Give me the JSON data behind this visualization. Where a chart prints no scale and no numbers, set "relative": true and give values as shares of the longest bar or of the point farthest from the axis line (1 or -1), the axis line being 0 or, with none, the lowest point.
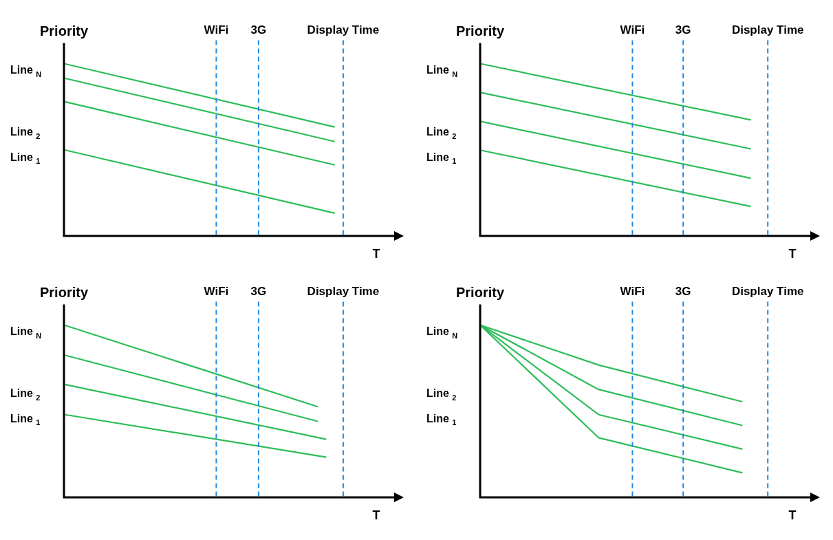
{
  "chart_data": [
    {
      "type": "line",
      "relative": true,
      "ylabel": "Priority",
      "xlabel": "T",
      "annotations": [
        "Line $_{N}$",
        "Line $_{2}$",
        "Line $_{1}$"
      ],
      "categories": [
        null,
        null,
        null,
        null,
        null,
        null,
        null,
        null,
        null,
        null,
        null,
        null,
        null,
        null,
        null,
        null,
        null,
        null,
        "WiFi",
        null,
        null,
        null,
        null,
        "3G",
        null,
        null,
        null,
        null,
        null,
        null,
        null,
        null,
        null,
        "Display Time",
        null,
        null,
        null,
        null,
        null,
        null,
        null
      ],
      "ref_lines": [
        {
          "axis": "x",
          "value": "WiFi",
          "color": "#1e88e5",
          "line_style": "dashed"
        },
        {
          "axis": "x",
          "value": "3G",
          "color": "#1e88e5",
          "line_style": "dashed"
        },
        {
          "axis": "x",
          "value": "Display Time",
          "color": "#1e88e5",
          "line_style": "dashed"
        }
      ],
      "series": [
        {
          "color": "#2ebd59",
          "values": [
            1,
            null,
            null,
            null,
            null,
            null,
            null,
            null,
            null,
            null,
            null,
            null,
            null,
            null,
            null,
            null,
            null,
            null,
            null,
            null,
            null,
            null,
            null,
            null,
            null,
            null,
            null,
            null,
            null,
            null,
            null,
            null,
            0.632,
            null,
            null,
            null,
            null,
            null,
            null,
            null,
            null
          ]
        },
        {
          "color": "#2ebd59",
          "values": [
            0.916,
            null,
            null,
            null,
            null,
            null,
            null,
            null,
            null,
            null,
            null,
            null,
            null,
            null,
            null,
            null,
            null,
            null,
            null,
            null,
            null,
            null,
            null,
            null,
            null,
            null,
            null,
            null,
            null,
            null,
            null,
            null,
            0.548,
            null,
            null,
            null,
            null,
            null,
            null,
            null,
            null
          ]
        },
        {
          "color": "#2ebd59",
          "values": [
            0.78,
            null,
            null,
            null,
            null,
            null,
            null,
            null,
            null,
            null,
            null,
            null,
            null,
            null,
            null,
            null,
            null,
            null,
            null,
            null,
            null,
            null,
            null,
            null,
            null,
            null,
            null,
            null,
            null,
            null,
            null,
            null,
            0.412,
            null,
            null,
            null,
            null,
            null,
            null,
            null,
            null
          ]
        },
        {
          "color": "#2ebd59",
          "values": [
            0.5,
            null,
            null,
            null,
            null,
            null,
            null,
            null,
            null,
            null,
            null,
            null,
            null,
            null,
            null,
            null,
            null,
            null,
            null,
            null,
            null,
            null,
            null,
            null,
            null,
            null,
            null,
            null,
            null,
            null,
            null,
            null,
            0.132,
            null,
            null,
            null,
            null,
            null,
            null,
            null,
            null
          ]
        }
      ]
    },
    {
      "type": "line",
      "relative": true,
      "ylabel": "Priority",
      "xlabel": "T",
      "annotations": [
        "Line $_{N}$",
        "Line $_{2}$",
        "Line $_{1}$"
      ],
      "categories": [
        null,
        null,
        null,
        null,
        null,
        null,
        null,
        null,
        null,
        null,
        null,
        null,
        null,
        null,
        null,
        null,
        null,
        null,
        "WiFi",
        null,
        null,
        null,
        null,
        null,
        "3G",
        null,
        null,
        null,
        null,
        null,
        null,
        null,
        null,
        null,
        "Display Time",
        null,
        null,
        null,
        null,
        null,
        null
      ],
      "ref_lines": [
        {
          "axis": "x",
          "value": "WiFi",
          "color": "#1e88e5",
          "line_style": "dashed"
        },
        {
          "axis": "x",
          "value": "3G",
          "color": "#1e88e5",
          "line_style": "dashed"
        },
        {
          "axis": "x",
          "value": "Display Time",
          "color": "#1e88e5",
          "line_style": "dashed"
        }
      ],
      "series": [
        {
          "color": "#2ebd59",
          "values": [
            1,
            null,
            null,
            null,
            null,
            null,
            null,
            null,
            null,
            null,
            null,
            null,
            null,
            null,
            null,
            null,
            null,
            null,
            null,
            null,
            null,
            null,
            null,
            null,
            null,
            null,
            null,
            null,
            null,
            null,
            null,
            null,
            0.673,
            null,
            null,
            null,
            null,
            null,
            null,
            null,
            null
          ]
        },
        {
          "color": "#2ebd59",
          "values": [
            0.833,
            null,
            null,
            null,
            null,
            null,
            null,
            null,
            null,
            null,
            null,
            null,
            null,
            null,
            null,
            null,
            null,
            null,
            null,
            null,
            null,
            null,
            null,
            null,
            null,
            null,
            null,
            null,
            null,
            null,
            null,
            null,
            0.505,
            null,
            null,
            null,
            null,
            null,
            null,
            null,
            null
          ]
        },
        {
          "color": "#2ebd59",
          "values": [
            0.665,
            null,
            null,
            null,
            null,
            null,
            null,
            null,
            null,
            null,
            null,
            null,
            null,
            null,
            null,
            null,
            null,
            null,
            null,
            null,
            null,
            null,
            null,
            null,
            null,
            null,
            null,
            null,
            null,
            null,
            null,
            null,
            0.335,
            null,
            null,
            null,
            null,
            null,
            null,
            null,
            null
          ]
        },
        {
          "color": "#2ebd59",
          "values": [
            0.498,
            null,
            null,
            null,
            null,
            null,
            null,
            null,
            null,
            null,
            null,
            null,
            null,
            null,
            null,
            null,
            null,
            null,
            null,
            null,
            null,
            null,
            null,
            null,
            null,
            null,
            null,
            null,
            null,
            null,
            null,
            null,
            0.171,
            null,
            null,
            null,
            null,
            null,
            null,
            null,
            null
          ]
        }
      ]
    },
    {
      "type": "line",
      "relative": true,
      "ylabel": "Priority",
      "xlabel": "T",
      "annotations": [
        "Line $_{N}$",
        "Line $_{2}$",
        "Line $_{1}$"
      ],
      "categories": [
        null,
        null,
        null,
        null,
        null,
        null,
        null,
        null,
        null,
        null,
        null,
        null,
        null,
        null,
        null,
        null,
        null,
        null,
        "WiFi",
        null,
        null,
        null,
        null,
        "3G",
        null,
        null,
        null,
        null,
        null,
        null,
        null,
        null,
        null,
        "Display Time",
        null,
        null,
        null,
        null,
        null,
        null,
        null
      ],
      "ref_lines": [
        {
          "axis": "x",
          "value": "WiFi",
          "color": "#1e88e5",
          "line_style": "dashed"
        },
        {
          "axis": "x",
          "value": "3G",
          "color": "#1e88e5",
          "line_style": "dashed"
        },
        {
          "axis": "x",
          "value": "Display Time",
          "color": "#1e88e5",
          "line_style": "dashed"
        }
      ],
      "series": [
        {
          "color": "#2ebd59",
          "values": [
            1,
            null,
            null,
            null,
            null,
            null,
            null,
            null,
            null,
            null,
            null,
            null,
            null,
            null,
            null,
            null,
            null,
            null,
            null,
            null,
            null,
            null,
            null,
            null,
            null,
            null,
            null,
            null,
            null,
            null,
            0.526,
            null,
            null,
            null,
            null,
            null,
            null,
            null,
            null,
            null,
            null
          ]
        },
        {
          "color": "#2ebd59",
          "values": [
            0.826,
            null,
            null,
            null,
            null,
            null,
            null,
            null,
            null,
            null,
            null,
            null,
            null,
            null,
            null,
            null,
            null,
            null,
            null,
            null,
            null,
            null,
            null,
            null,
            null,
            null,
            null,
            null,
            null,
            null,
            0.441,
            null,
            null,
            null,
            null,
            null,
            null,
            null,
            null,
            null,
            null
          ]
        },
        {
          "color": "#2ebd59",
          "values": [
            0.656,
            null,
            null,
            null,
            null,
            null,
            null,
            null,
            null,
            null,
            null,
            null,
            null,
            null,
            null,
            null,
            null,
            null,
            null,
            null,
            null,
            null,
            null,
            null,
            null,
            null,
            null,
            null,
            null,
            null,
            null,
            0.337,
            null,
            null,
            null,
            null,
            null,
            null,
            null,
            null,
            null
          ]
        },
        {
          "color": "#2ebd59",
          "values": [
            0.481,
            null,
            null,
            null,
            null,
            null,
            null,
            null,
            null,
            null,
            null,
            null,
            null,
            null,
            null,
            null,
            null,
            null,
            null,
            null,
            null,
            null,
            null,
            null,
            null,
            null,
            null,
            null,
            null,
            null,
            null,
            0.233,
            null,
            null,
            null,
            null,
            null,
            null,
            null,
            null,
            null
          ]
        }
      ]
    },
    {
      "type": "line",
      "relative": true,
      "ylabel": "Priority",
      "xlabel": "T",
      "annotations": [
        "Line $_{N}$",
        "Line $_{2}$",
        "Line $_{1}$"
      ],
      "categories": [
        null,
        null,
        null,
        null,
        null,
        null,
        null,
        null,
        null,
        null,
        null,
        null,
        null,
        null,
        null,
        null,
        null,
        null,
        "WiFi",
        null,
        null,
        null,
        null,
        null,
        "3G",
        null,
        null,
        null,
        null,
        null,
        null,
        null,
        null,
        null,
        "Display Time",
        null,
        null,
        null,
        null,
        null,
        null
      ],
      "ref_lines": [
        {
          "axis": "x",
          "value": "WiFi",
          "color": "#1e88e5",
          "line_style": "dashed"
        },
        {
          "axis": "x",
          "value": "3G",
          "color": "#1e88e5",
          "line_style": "dashed"
        },
        {
          "axis": "x",
          "value": "Display Time",
          "color": "#1e88e5",
          "line_style": "dashed"
        }
      ],
      "series": [
        {
          "color": "#2ebd59",
          "values": [
            1,
            null,
            null,
            null,
            null,
            null,
            null,
            null,
            null,
            null,
            null,
            null,
            null,
            null,
            0.768,
            null,
            null,
            null,
            null,
            null,
            null,
            null,
            null,
            null,
            null,
            null,
            null,
            null,
            null,
            null,
            null,
            0.555,
            null,
            null,
            null,
            null,
            null,
            null,
            null,
            null,
            null
          ]
        },
        {
          "color": "#2ebd59",
          "values": [
            1,
            null,
            null,
            null,
            null,
            null,
            null,
            null,
            null,
            null,
            null,
            null,
            null,
            null,
            0.626,
            null,
            null,
            null,
            null,
            null,
            null,
            null,
            null,
            null,
            null,
            null,
            null,
            null,
            null,
            null,
            null,
            0.417,
            null,
            null,
            null,
            null,
            null,
            null,
            null,
            null,
            null
          ]
        },
        {
          "color": "#2ebd59",
          "values": [
            1,
            null,
            null,
            null,
            null,
            null,
            null,
            null,
            null,
            null,
            null,
            null,
            null,
            null,
            0.48,
            null,
            null,
            null,
            null,
            null,
            null,
            null,
            null,
            null,
            null,
            null,
            null,
            null,
            null,
            null,
            null,
            0.28,
            null,
            null,
            null,
            null,
            null,
            null,
            null,
            null,
            null
          ]
        },
        {
          "color": "#2ebd59",
          "values": [
            1,
            null,
            null,
            null,
            null,
            null,
            null,
            null,
            null,
            null,
            null,
            null,
            null,
            null,
            0.346,
            null,
            null,
            null,
            null,
            null,
            null,
            null,
            null,
            null,
            null,
            null,
            null,
            null,
            null,
            null,
            null,
            0.142,
            null,
            null,
            null,
            null,
            null,
            null,
            null,
            null,
            null
          ]
        }
      ]
    }
  ]
}
